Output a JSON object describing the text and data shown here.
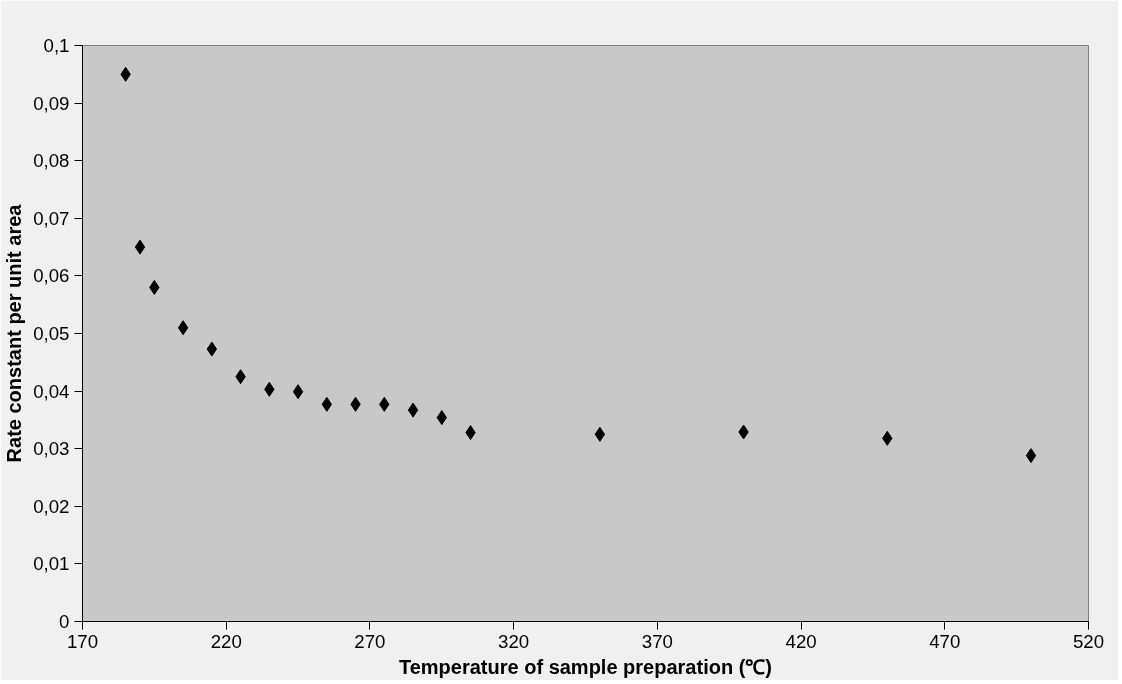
{
  "chart_data": {
    "type": "scatter",
    "xlabel": "Temperature of sample preparation (℃)",
    "ylabel": "Rate constant per unit area",
    "x": [
      185,
      190,
      195,
      205,
      215,
      225,
      235,
      245,
      255,
      265,
      275,
      285,
      295,
      305,
      350,
      400,
      450,
      500
    ],
    "series": [
      {
        "color": "#000000",
        "values": [
          0.095,
          0.065,
          0.058,
          0.051,
          0.0473,
          0.0425,
          0.0403,
          0.0399,
          0.0377,
          0.0377,
          0.0377,
          0.0367,
          0.0354,
          0.0328,
          0.0325,
          0.0329,
          0.0318,
          0.0288
        ]
      }
    ],
    "xlim": [
      170,
      520
    ],
    "xticks": [
      170,
      220,
      270,
      320,
      370,
      420,
      470,
      520
    ],
    "ylim": [
      0,
      0.1
    ],
    "yticks": [
      {
        "value": 0,
        "label": "0"
      },
      {
        "value": 0.01,
        "label": "0,01"
      },
      {
        "value": 0.02,
        "label": "0,02"
      },
      {
        "value": 0.03,
        "label": "0,03"
      },
      {
        "value": 0.04,
        "label": "0,04"
      },
      {
        "value": 0.05,
        "label": "0,05"
      },
      {
        "value": 0.06,
        "label": "0,06"
      },
      {
        "value": 0.07,
        "label": "0,07"
      },
      {
        "value": 0.08,
        "label": "0,08"
      },
      {
        "value": 0.09,
        "label": "0,09"
      },
      {
        "value": 0.1,
        "label": "0,1"
      }
    ],
    "grid": false,
    "marker": "diamond"
  }
}
